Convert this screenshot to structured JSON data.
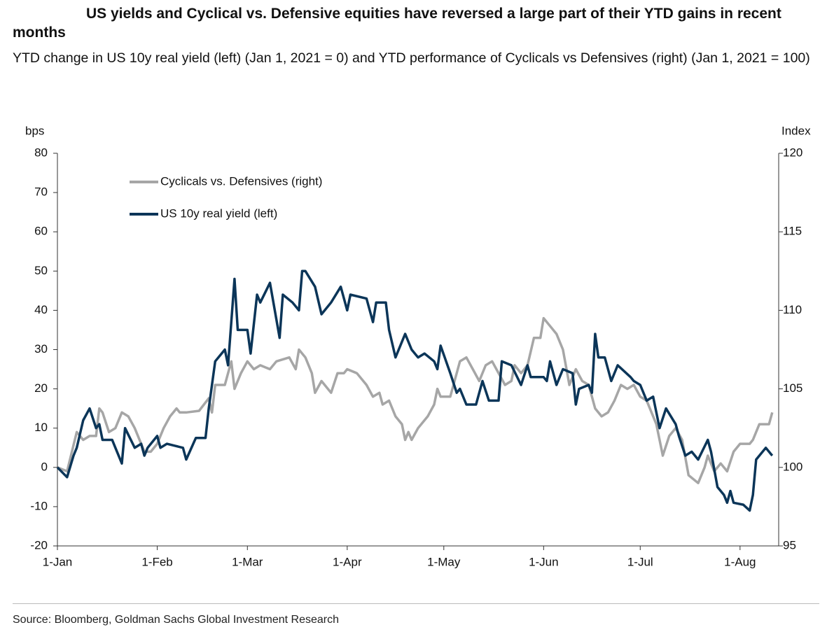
{
  "chart_data": {
    "type": "line",
    "title": "US yields and Cyclical vs. Defensive equities have reversed a large part of their YTD gains in recent months",
    "subtitle": "YTD change in US 10y real yield (left) (Jan 1, 2021 = 0) and YTD performance of Cyclicals vs Defensives (right) (Jan 1, 2021 = 100)",
    "y_label": "bps",
    "y2_label": "Index",
    "source": "Source: Bloomberg, Goldman Sachs Global Investment Research",
    "xlim": [
      0,
      224
    ],
    "xticks": [
      {
        "value": 0,
        "label": "1-Jan"
      },
      {
        "value": 31,
        "label": "1-Feb"
      },
      {
        "value": 59,
        "label": "1-Mar"
      },
      {
        "value": 90,
        "label": "1-Apr"
      },
      {
        "value": 120,
        "label": "1-May"
      },
      {
        "value": 151,
        "label": "1-Jun"
      },
      {
        "value": 181,
        "label": "1-Jul"
      },
      {
        "value": 212,
        "label": "1-Aug"
      }
    ],
    "ylim": [
      -20,
      80
    ],
    "yticks": [
      -20,
      -10,
      0,
      10,
      20,
      30,
      40,
      50,
      60,
      70,
      80
    ],
    "y2lim": [
      95,
      120
    ],
    "y2ticks": [
      95,
      100,
      105,
      110,
      115,
      120
    ],
    "legend": "upper left",
    "series": [
      {
        "name": "Cyclicals vs. Defensives (right)",
        "color": "#a6a6a6",
        "axis": "y2",
        "x": [
          0,
          3,
          6,
          8,
          10,
          12,
          13,
          14,
          16,
          18,
          20,
          22,
          24,
          27,
          29,
          31,
          33,
          35,
          37,
          38,
          40,
          44,
          47,
          48,
          49,
          52,
          54,
          55,
          57,
          59,
          61,
          63,
          66,
          68,
          72,
          74,
          75,
          77,
          79,
          80,
          82,
          85,
          87,
          89,
          90,
          93,
          96,
          98,
          100,
          101,
          103,
          105,
          107,
          108,
          109,
          110,
          112,
          115,
          117,
          118,
          119,
          122,
          124,
          125,
          127,
          129,
          131,
          133,
          135,
          137,
          139,
          141,
          142,
          144,
          146,
          148,
          150,
          151,
          153,
          155,
          157,
          159,
          161,
          163,
          165,
          167,
          169,
          171,
          173,
          175,
          177,
          179,
          181,
          183,
          186,
          188,
          190,
          192,
          194,
          196,
          199,
          201,
          202,
          204,
          206,
          208,
          210,
          212,
          215,
          216,
          218,
          220,
          221,
          222
        ],
        "values": [
          100,
          99.75,
          102.25,
          101.75,
          102,
          102,
          103.75,
          103.5,
          102.25,
          102.5,
          103.5,
          103.25,
          102.5,
          101,
          101,
          101.5,
          102.5,
          103.25,
          103.75,
          103.5,
          103.5,
          103.6,
          104.4,
          103.5,
          105.25,
          105.25,
          106.75,
          105,
          106,
          106.75,
          106.25,
          106.5,
          106.25,
          106.75,
          107,
          106.25,
          107.5,
          107,
          106,
          104.75,
          105.5,
          104.75,
          106,
          106,
          106.25,
          106,
          105.25,
          104.5,
          104.75,
          104,
          104.25,
          103.25,
          102.75,
          101.75,
          102.25,
          101.75,
          102.5,
          103.25,
          104,
          105,
          104.5,
          104.5,
          106,
          106.75,
          107,
          106.25,
          105.5,
          106.5,
          106.75,
          106,
          105.25,
          105.5,
          106.5,
          106,
          106.5,
          108.25,
          108.25,
          109.5,
          109,
          108.5,
          107.5,
          105.25,
          106.25,
          105.5,
          105.25,
          103.75,
          103.25,
          103.5,
          104.25,
          105.25,
          105,
          105.25,
          104.5,
          104.25,
          102.75,
          100.75,
          102,
          102.5,
          101.75,
          99.5,
          99,
          100,
          100.75,
          99.75,
          100.25,
          99.75,
          101,
          101.5,
          101.5,
          101.75,
          102.75,
          102.75,
          102.75,
          103.5
        ]
      },
      {
        "name": "US 10y real yield (left)",
        "color": "#0b3558",
        "axis": "y",
        "x": [
          0,
          3,
          5,
          6,
          8,
          10,
          12,
          13,
          14,
          17,
          18,
          20,
          21,
          24,
          26,
          27,
          28,
          31,
          32,
          34,
          39,
          40,
          43,
          46,
          47,
          49,
          52,
          53,
          55,
          56,
          59,
          60,
          62,
          63,
          66,
          69,
          70,
          73,
          75,
          76,
          77,
          80,
          82,
          83,
          85,
          88,
          90,
          91,
          96,
          98,
          99,
          102,
          103,
          105,
          108,
          110,
          112,
          114,
          117,
          118,
          119,
          122,
          124,
          125,
          127,
          130,
          132,
          134,
          137,
          138,
          141,
          144,
          146,
          147,
          151,
          152,
          153,
          155,
          157,
          160,
          161,
          162,
          165,
          166,
          167,
          168,
          170,
          172,
          174,
          178,
          179,
          181,
          183,
          185,
          187,
          189,
          192,
          193,
          195,
          197,
          199,
          202,
          203,
          205,
          207,
          208,
          209,
          210,
          213,
          215,
          216,
          217,
          220,
          222
        ],
        "values": [
          0,
          -2.5,
          3,
          5,
          12,
          15,
          10,
          11,
          7,
          7,
          5,
          1,
          10,
          5,
          6,
          3,
          5,
          8,
          5,
          6,
          5,
          2,
          7.5,
          7.5,
          15,
          27,
          30,
          26,
          48,
          35,
          35,
          29,
          44,
          42,
          47,
          33,
          44,
          42,
          40,
          50,
          50,
          46,
          39,
          40,
          42,
          46,
          40,
          44,
          43,
          37,
          42,
          42,
          35,
          28,
          34,
          30,
          28,
          29,
          27,
          25,
          31,
          24,
          19,
          20,
          16,
          16,
          22,
          17,
          17,
          27,
          26,
          21,
          26,
          23,
          23,
          22,
          27,
          21,
          25,
          24,
          16,
          20,
          21,
          19,
          34,
          28,
          28,
          22,
          26,
          23,
          22,
          21,
          17,
          18,
          10,
          15,
          11,
          8,
          3,
          4,
          2,
          7,
          4,
          -5,
          -7,
          -9,
          -6,
          -9,
          -9.5,
          -11,
          -7,
          2,
          5,
          3
        ]
      }
    ]
  }
}
